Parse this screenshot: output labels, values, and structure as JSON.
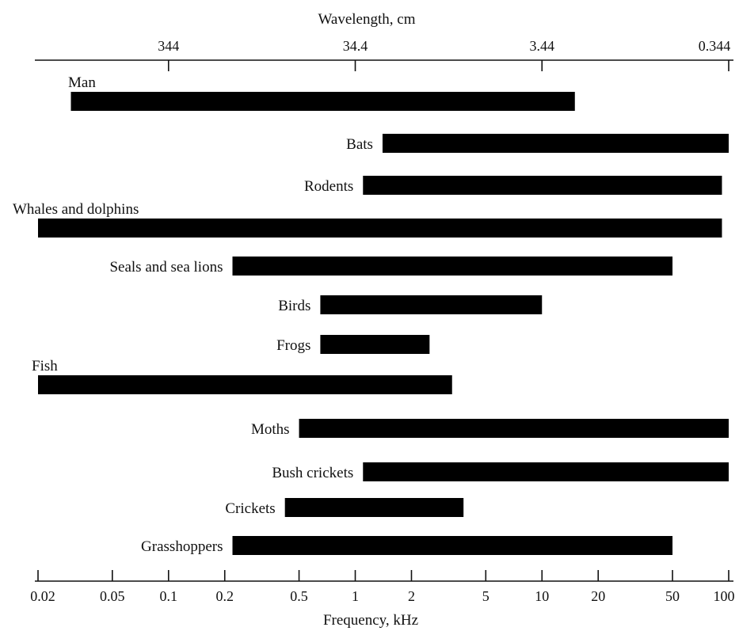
{
  "chart_data": {
    "type": "bar",
    "orientation": "horizontal-range",
    "scale": "log",
    "xlabel": "Frequency, kHz",
    "top_axis_label": "Wavelength, cm",
    "x_ticks": [
      {
        "value": 0.02,
        "label": "0.02"
      },
      {
        "value": 0.05,
        "label": "0.05"
      },
      {
        "value": 0.1,
        "label": "0.1"
      },
      {
        "value": 0.2,
        "label": "0.2"
      },
      {
        "value": 0.5,
        "label": "0.5"
      },
      {
        "value": 1,
        "label": "1"
      },
      {
        "value": 2,
        "label": "2"
      },
      {
        "value": 5,
        "label": "5"
      },
      {
        "value": 10,
        "label": "10"
      },
      {
        "value": 20,
        "label": "20"
      },
      {
        "value": 50,
        "label": "50"
      },
      {
        "value": 100,
        "label": "100"
      }
    ],
    "top_ticks": [
      {
        "value": 0.1,
        "label": "344"
      },
      {
        "value": 1,
        "label": "34.4"
      },
      {
        "value": 10,
        "label": "3.44"
      },
      {
        "value": 100,
        "label": "0.344"
      }
    ],
    "xlim": [
      0.02,
      100
    ],
    "series": [
      {
        "name": "Man",
        "low": 0.03,
        "high": 15,
        "label_position": "above-left"
      },
      {
        "name": "Bats",
        "low": 1.4,
        "high": 100,
        "label_position": "left"
      },
      {
        "name": "Rodents",
        "low": 1.1,
        "high": 92,
        "label_position": "left"
      },
      {
        "name": "Whales and dolphins",
        "low": 0.02,
        "high": 92,
        "label_position": "above-left"
      },
      {
        "name": "Seals and sea lions",
        "low": 0.22,
        "high": 50,
        "label_position": "left"
      },
      {
        "name": "Birds",
        "low": 0.65,
        "high": 10,
        "label_position": "left"
      },
      {
        "name": "Frogs",
        "low": 0.65,
        "high": 2.5,
        "label_position": "left"
      },
      {
        "name": "Fish",
        "low": 0.02,
        "high": 3.3,
        "label_position": "above-left"
      },
      {
        "name": "Moths",
        "low": 0.5,
        "high": 100,
        "label_position": "left"
      },
      {
        "name": "Bush crickets",
        "low": 1.1,
        "high": 100,
        "label_position": "left"
      },
      {
        "name": "Crickets",
        "low": 0.42,
        "high": 3.8,
        "label_position": "left"
      },
      {
        "name": "Grasshoppers",
        "low": 0.22,
        "high": 50,
        "label_position": "left"
      }
    ]
  }
}
